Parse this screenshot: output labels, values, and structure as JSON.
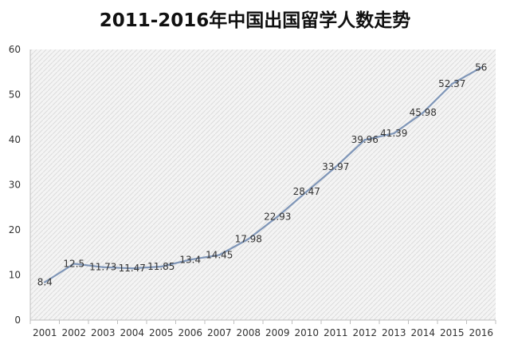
{
  "chart_data": {
    "type": "line",
    "title": "2011-2016年中国出国留学人数走势",
    "xlabel": "",
    "ylabel": "",
    "categories": [
      "2001",
      "2002",
      "2003",
      "2004",
      "2005",
      "2006",
      "2007",
      "2008",
      "2009",
      "2010",
      "2011",
      "2012",
      "2013",
      "2014",
      "2015",
      "2016"
    ],
    "series": [
      {
        "values": [
          8.4,
          12.5,
          11.73,
          11.47,
          11.85,
          13.4,
          14.45,
          17.98,
          22.93,
          28.47,
          33.97,
          39.96,
          41.39,
          45.98,
          52.37,
          56
        ],
        "labels": [
          "8.4",
          "12.5",
          "11.73",
          "11.47",
          "11.85",
          "13.4",
          "14.45",
          "17.98",
          "22.93",
          "28.47",
          "33.97",
          "39.96",
          "41.39",
          "45.98",
          "52.37",
          "56"
        ]
      }
    ],
    "ylim": [
      0,
      60
    ],
    "yticks": [
      0,
      10,
      20,
      30,
      40,
      50,
      60
    ],
    "grid": false,
    "legend": "none",
    "colors": {
      "line": "#7f96b8",
      "plot_background": "#f2f2f2",
      "hatch": "#dcdcdc",
      "axis": "#bfbfbf"
    }
  }
}
